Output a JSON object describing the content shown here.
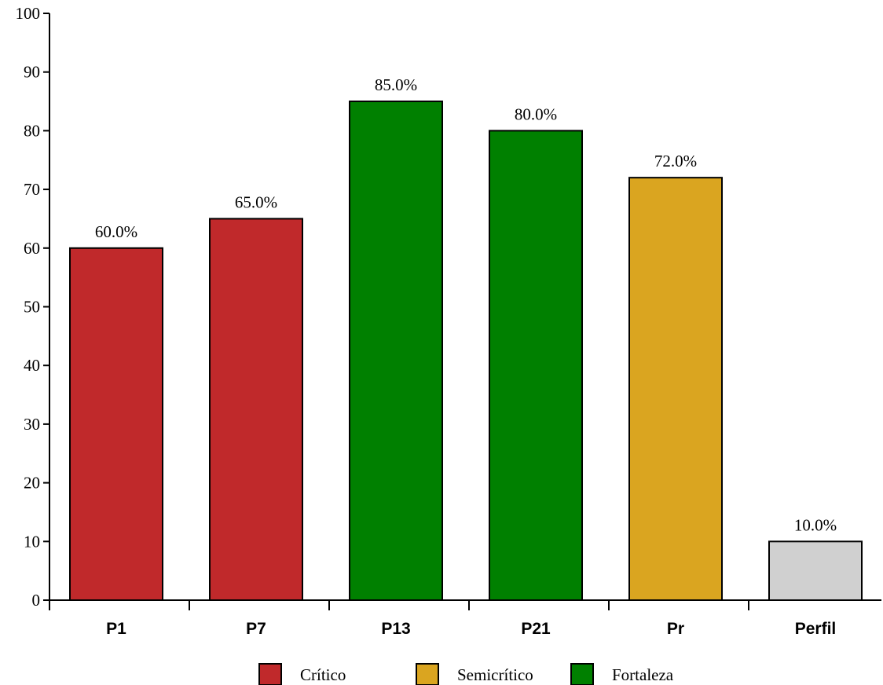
{
  "chart_data": {
    "type": "bar",
    "categories": [
      "P1",
      "P7",
      "P13",
      "P21",
      "Pr",
      "Perfil"
    ],
    "values": [
      60,
      65,
      85,
      80,
      72,
      10
    ],
    "data_labels": [
      "60.0%",
      "65.0%",
      "85.0%",
      "80.0%",
      "72.0%",
      "10.0%"
    ],
    "bar_colors": [
      "#c0292b",
      "#c0292b",
      "#008000",
      "#008000",
      "#daa520",
      "#d0d0d0"
    ],
    "ylim": [
      0,
      100
    ],
    "yticks": [
      0,
      10,
      20,
      30,
      40,
      50,
      60,
      70,
      80,
      90,
      100
    ],
    "ytick_labels": [
      "0",
      "10",
      "20",
      "30",
      "40",
      "50",
      "60",
      "70",
      "80",
      "90",
      "100"
    ],
    "grid": false,
    "legend_position": "bottom-center",
    "legend": [
      {
        "label": "Crítico",
        "color": "#c0292b"
      },
      {
        "label": "Semicrítico",
        "color": "#daa520"
      },
      {
        "label": "Fortaleza",
        "color": "#008000"
      }
    ]
  }
}
